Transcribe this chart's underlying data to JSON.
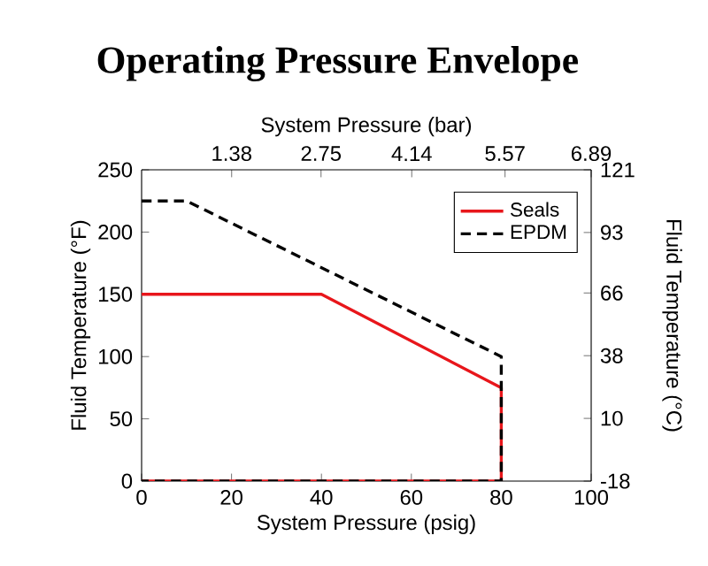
{
  "chart_data": {
    "type": "line",
    "title": "Operating Pressure Envelope",
    "xlabel": "System Pressure (psig)",
    "ylabel": "Fluid Temperature (°F)",
    "x2label": "System Pressure (bar)",
    "y2label": "Fluid Temperature (°C)",
    "xlim": [
      0,
      100
    ],
    "xticks": [
      0,
      20,
      40,
      60,
      80,
      100
    ],
    "ylim": [
      0,
      250
    ],
    "yticks": [
      0,
      50,
      100,
      150,
      200,
      250
    ],
    "x2lim": [
      0,
      6.89
    ],
    "x2ticks": [
      1.38,
      2.75,
      4.14,
      5.57,
      6.89
    ],
    "y2lim": [
      -18,
      121
    ],
    "y2ticks": [
      -18,
      10,
      38,
      66,
      93,
      121
    ],
    "grid": false,
    "legend": "top right",
    "marker": "none",
    "series": [
      {
        "name": "Seals",
        "color": "#e8161b",
        "line_style": "solid",
        "x": [
          0,
          40,
          80,
          80,
          0
        ],
        "values": [
          150,
          150,
          75,
          0,
          0
        ]
      },
      {
        "name": "EPDM",
        "color": "#000000",
        "line_style": "dashed",
        "x": [
          0,
          10,
          80,
          80,
          0
        ],
        "values": [
          225,
          225,
          100,
          0,
          0
        ]
      }
    ]
  }
}
